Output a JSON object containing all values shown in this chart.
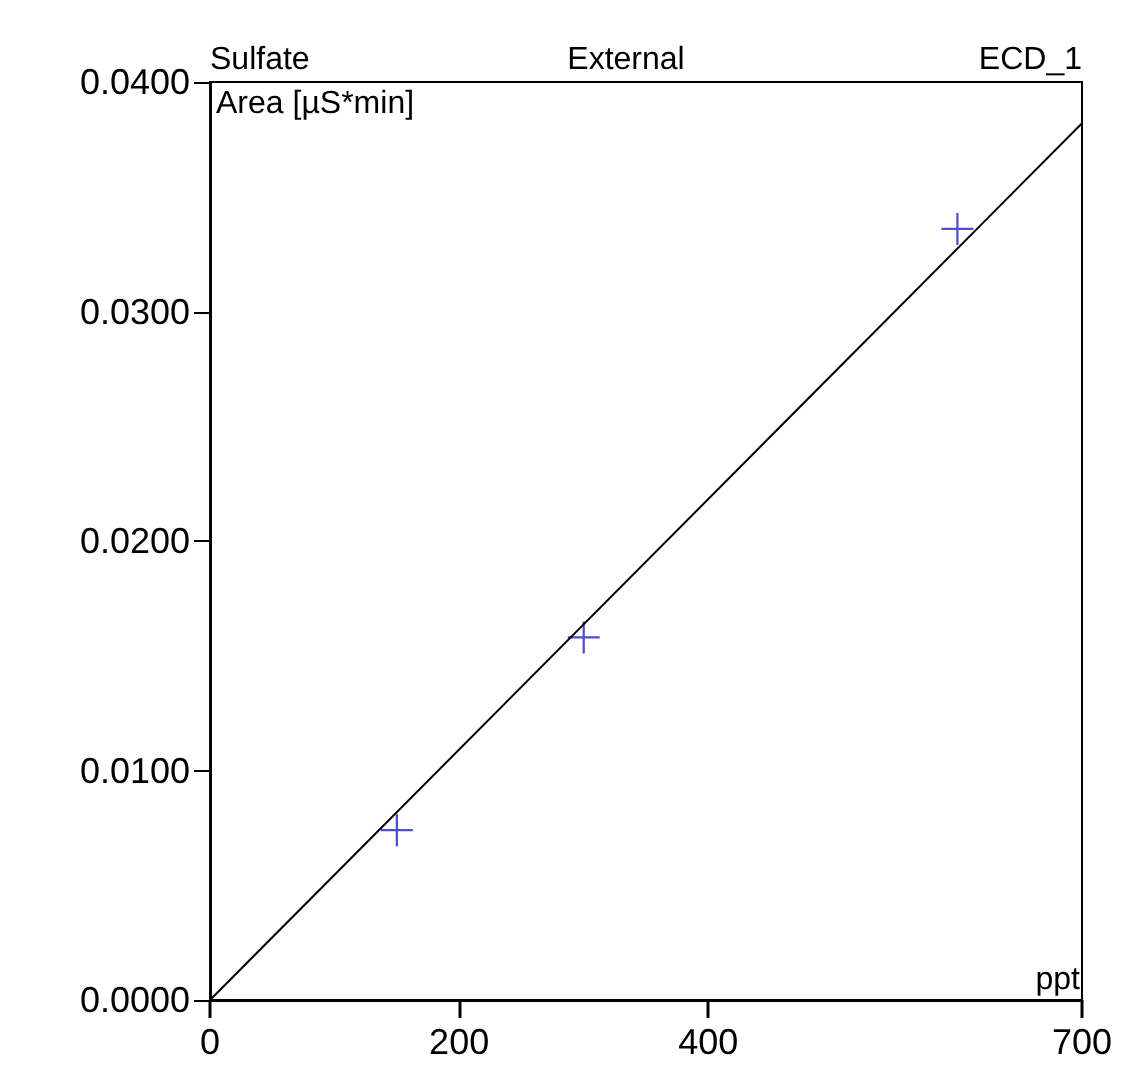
{
  "chart_data": {
    "type": "scatter",
    "title": "Sulfate",
    "subtitle": "External",
    "annotations": [
      "ECD_1"
    ],
    "xlabel": "ppt",
    "ylabel": "Area [µS*min]",
    "series": [
      {
        "color": "#2020c0",
        "marker": "cross",
        "x": [
          150,
          300,
          600
        ],
        "values": [
          0.0074,
          0.0158,
          0.0336
        ]
      },
      {
        "type": "line",
        "color": "#000000",
        "marker": "none",
        "line_style": "solid",
        "x": [
          0,
          700
        ],
        "values": [
          0,
          0.0382
        ]
      }
    ],
    "xlim": [
      0,
      700
    ],
    "xticks": [
      0,
      200,
      400,
      700
    ],
    "ylim": [
      0,
      0.04
    ],
    "yticks": [
      {
        "value": 0,
        "label": "0.0000"
      },
      {
        "value": 0.01,
        "label": "0.0100"
      },
      {
        "value": 0.02,
        "label": "0.0200"
      },
      {
        "value": 0.03,
        "label": "0.0300"
      },
      {
        "value": 0.04,
        "label": "0.0400"
      }
    ],
    "grid": false
  }
}
